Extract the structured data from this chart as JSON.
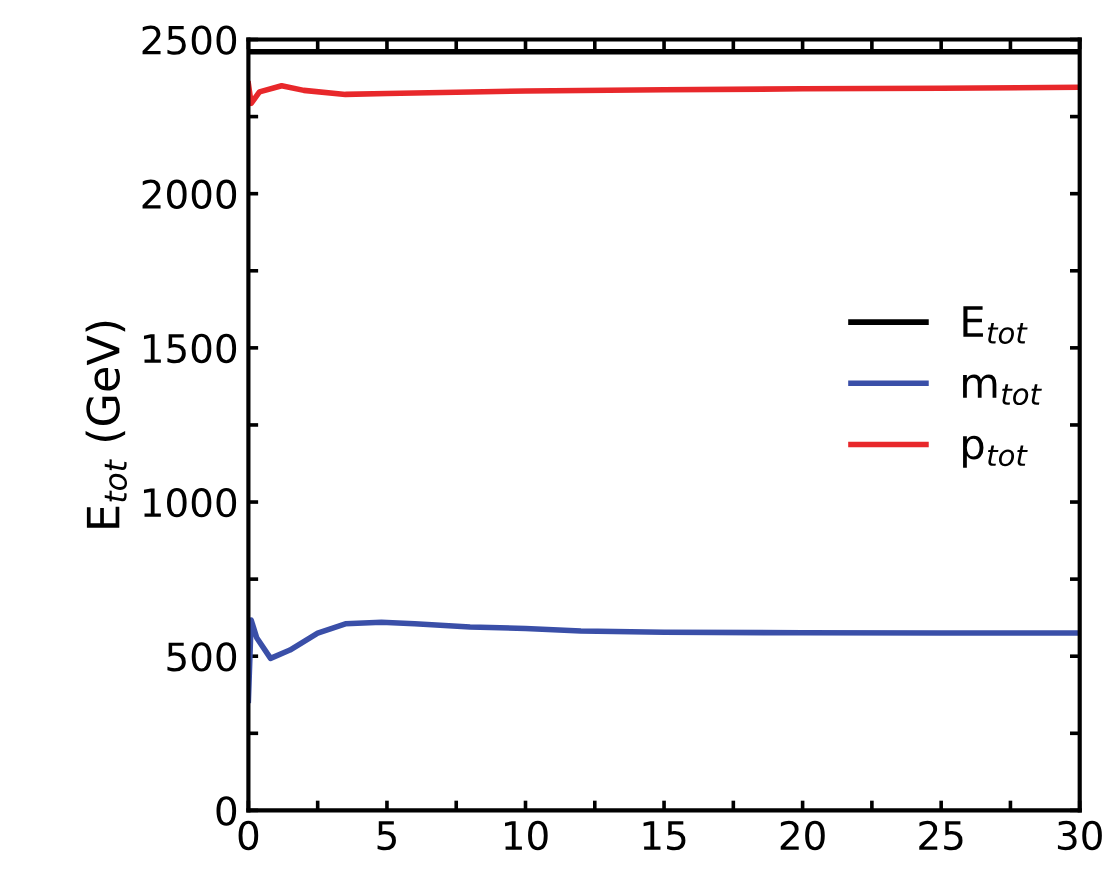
{
  "chart_data": {
    "type": "line",
    "ylabel": "E$_{tot}$ (GeV)",
    "xlim": [
      0,
      30
    ],
    "ylim": [
      0,
      2500
    ],
    "xticks": [
      0,
      {
        "value": 2.5,
        "label": null
      },
      5,
      {
        "value": 7.5,
        "label": null
      },
      10,
      {
        "value": 12.5,
        "label": null
      },
      15,
      {
        "value": 17.5,
        "label": null
      },
      20,
      {
        "value": 22.5,
        "label": null
      },
      25,
      {
        "value": 27.5,
        "label": null
      },
      30
    ],
    "yticks": [
      0,
      {
        "value": 250,
        "label": null
      },
      500,
      {
        "value": 750,
        "label": null
      },
      1000,
      {
        "value": 1250,
        "label": null
      },
      1500,
      {
        "value": 1750,
        "label": null
      },
      2000,
      {
        "value": 2250,
        "label": null
      },
      2500
    ],
    "grid": false,
    "legend": "center right",
    "line_style": "solid",
    "marker": "none",
    "series": [
      {
        "name": "E$_{tot}$",
        "color": "#000000",
        "x": [
          0,
          30
        ],
        "values": [
          2460,
          2460
        ]
      },
      {
        "name": "m$_{tot}$",
        "color": "#3a4fa8",
        "x": [
          0,
          0.1,
          0.3,
          0.8,
          1.5,
          2.5,
          3.5,
          4.8,
          6,
          8,
          10,
          12,
          15,
          20,
          25,
          30
        ],
        "values": [
          357,
          617,
          560,
          493,
          520,
          575,
          605,
          610,
          605,
          595,
          590,
          582,
          578,
          576,
          575,
          575
        ]
      },
      {
        "name": "p$_{tot}$",
        "color": "#e8282b",
        "x": [
          0,
          0.1,
          0.4,
          1.2,
          2,
          3.5,
          5,
          8,
          10,
          15,
          20,
          25,
          30
        ],
        "values": [
          2356,
          2293,
          2330,
          2350,
          2335,
          2322,
          2325,
          2330,
          2333,
          2337,
          2340,
          2342,
          2345
        ]
      }
    ]
  }
}
